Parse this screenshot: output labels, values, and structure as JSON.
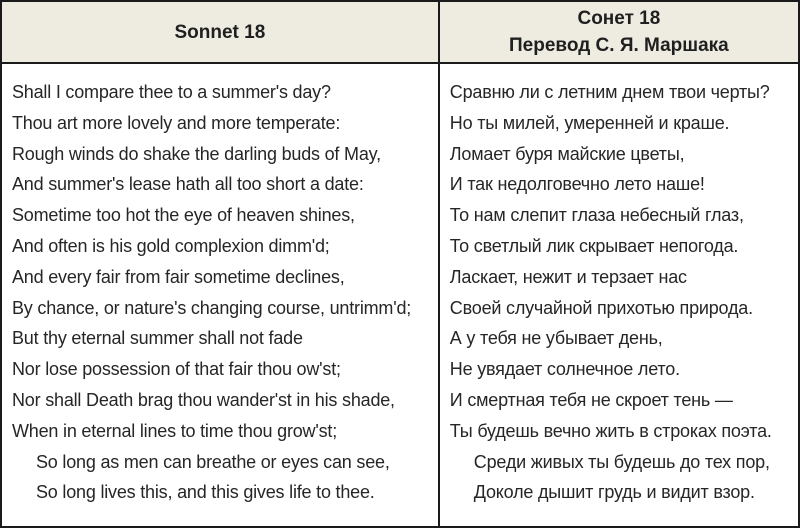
{
  "colors": {
    "header_bg": "#eeece1",
    "border": "#1a1a1a",
    "text": "#262626"
  },
  "left": {
    "header": "Sonnet 18",
    "lines": [
      "Shall I compare thee to a summer's day?",
      "Thou art more lovely and more temperate:",
      "Rough winds do shake the darling buds of May,",
      "And summer's lease hath all too short a date:",
      "Sometime too hot the eye of heaven shines,",
      "And often is his gold complexion dimm'd;",
      "And every fair from fair sometime declines,",
      "By chance, or nature's changing course, untrimm'd;",
      "But thy eternal summer shall not fade",
      "Nor lose possession of that fair thou ow'st;",
      "Nor shall Death brag thou wander'st in his shade,",
      "When in eternal lines to time thou grow'st;",
      "So long as men can breathe or eyes can see,",
      "So long lives this, and this gives life to thee."
    ]
  },
  "right": {
    "header_line1": "Сонет 18",
    "header_line2": "Перевод С. Я. Маршака",
    "lines": [
      "Сравню ли с летним днем твои черты?",
      "Но ты милей, умеренней и краше.",
      "Ломает буря майские цветы,",
      "И так недолговечно лето наше!",
      "То нам слепит глаза небесный глаз,",
      "То светлый лик скрывает непогода.",
      "Ласкает, нежит и терзает нас",
      "Своей случайной прихотью природа.",
      "А у тебя не убывает день,",
      "Не увядает солнечное лето.",
      "И смертная тебя не скроет тень —",
      "Ты будешь вечно жить в строках поэта.",
      "Среди живых ты будешь до тех пор,",
      "Доколе дышит грудь и видит взор."
    ]
  }
}
